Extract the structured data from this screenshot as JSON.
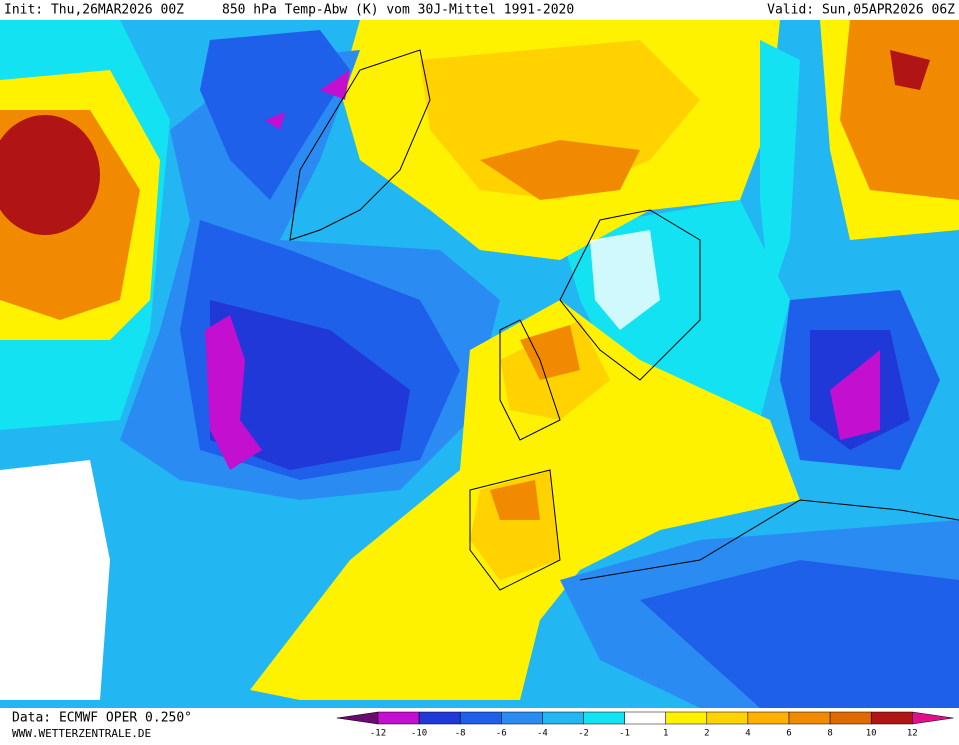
{
  "header": {
    "init": "Init: Thu,26MAR2026 00Z",
    "title": "850 hPa Temp-Abw (K) vom 30J-Mittel 1991-2020",
    "valid": "Valid: Sun,05APR2026 06Z"
  },
  "footer": {
    "data": "Data: ECMWF OPER 0.250°",
    "site": "WWW.WETTERZENTRALE.DE"
  },
  "legend": {
    "ticks": [
      -12,
      -10,
      -8,
      -6,
      -4,
      -2,
      -1,
      1,
      2,
      4,
      6,
      8,
      10,
      12
    ],
    "colors": [
      "#6a0a70",
      "#c20fd0",
      "#2038d8",
      "#1f60ea",
      "#2a8cf2",
      "#22b6f2",
      "#12e2f2",
      "#ffffff",
      "#fff200",
      "#ffd200",
      "#ffb000",
      "#f28a00",
      "#e06a00",
      "#b01414",
      "#e0108c"
    ]
  }
}
